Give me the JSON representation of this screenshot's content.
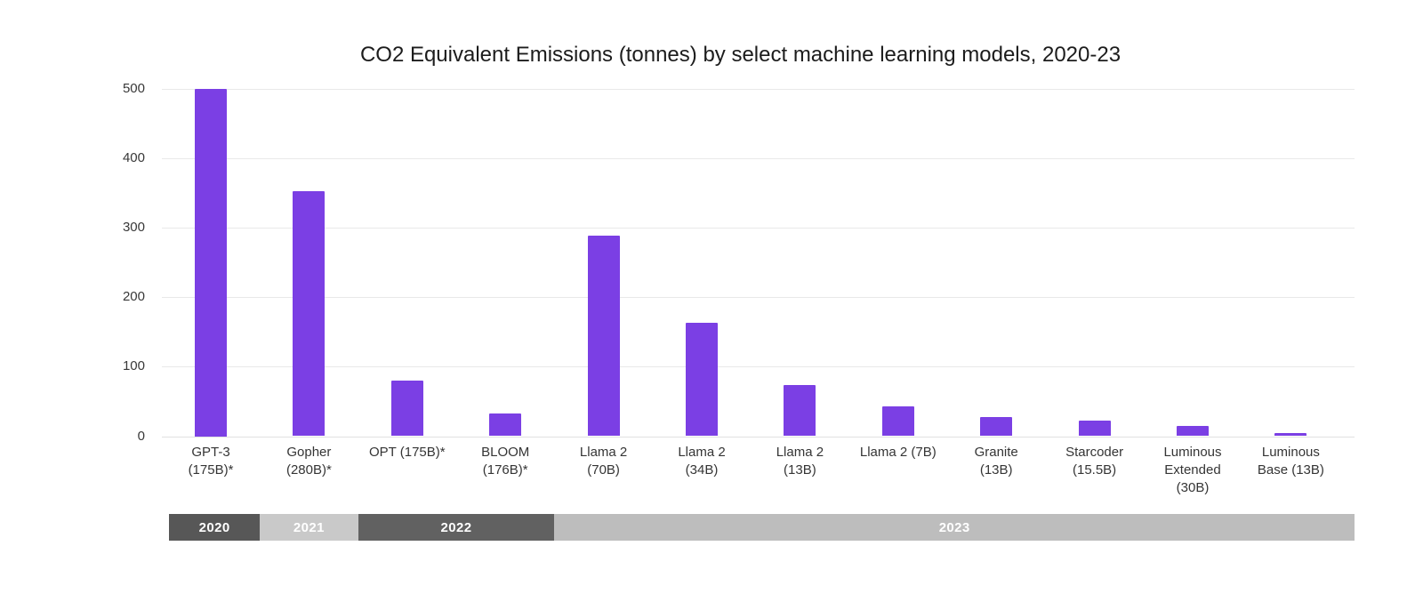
{
  "chart_data": {
    "type": "bar",
    "title": "CO2 Equivalent Emissions (tonnes) by select machine learning models, 2020-23",
    "xlabel": "",
    "ylabel": "",
    "ylim": [
      0,
      500
    ],
    "yticks": [
      0,
      100,
      200,
      300,
      400,
      500
    ],
    "grid": true,
    "legend": "none",
    "bar_color": "#7B3FE4",
    "categories": [
      "GPT-3 (175B)*",
      "Gopher (280B)*",
      "OPT (175B)*",
      "BLOOM (176B)*",
      "Llama 2 (70B)",
      "Llama 2 (34B)",
      "Llama 2 (13B)",
      "Llama 2 (7B)",
      "Granite (13B)",
      "Starcoder (15.5B)",
      "Luminous Extended (30B)",
      "Luminous Base (13B)"
    ],
    "category_label_lines": [
      [
        "GPT-3",
        "(175B)*"
      ],
      [
        "Gopher",
        "(280B)*"
      ],
      [
        "OPT (175B)*"
      ],
      [
        "BLOOM",
        "(176B)*"
      ],
      [
        "Llama 2",
        "(70B)"
      ],
      [
        "Llama 2",
        "(34B)"
      ],
      [
        "Llama 2",
        "(13B)"
      ],
      [
        "Llama 2 (7B)"
      ],
      [
        "Granite",
        "(13B)"
      ],
      [
        "Starcoder",
        "(15.5B)"
      ],
      [
        "Luminous",
        "Extended",
        "(30B)"
      ],
      [
        "Luminous",
        "Base (13B)"
      ]
    ],
    "values": [
      500,
      353,
      80,
      33,
      289,
      163,
      73,
      43,
      27,
      23,
      15,
      4
    ],
    "year_bands": [
      {
        "label": "2020",
        "slots": 1,
        "color": "#575757",
        "text_color": "#ffffff"
      },
      {
        "label": "2021",
        "slots": 1,
        "color": "#C9C9C9",
        "text_color": "#ffffff"
      },
      {
        "label": "2022",
        "slots": 2,
        "color": "#616161",
        "text_color": "#ffffff"
      },
      {
        "label": "2023",
        "slots": 8,
        "color": "#BDBDBD",
        "text_color": "#ffffff"
      }
    ]
  }
}
